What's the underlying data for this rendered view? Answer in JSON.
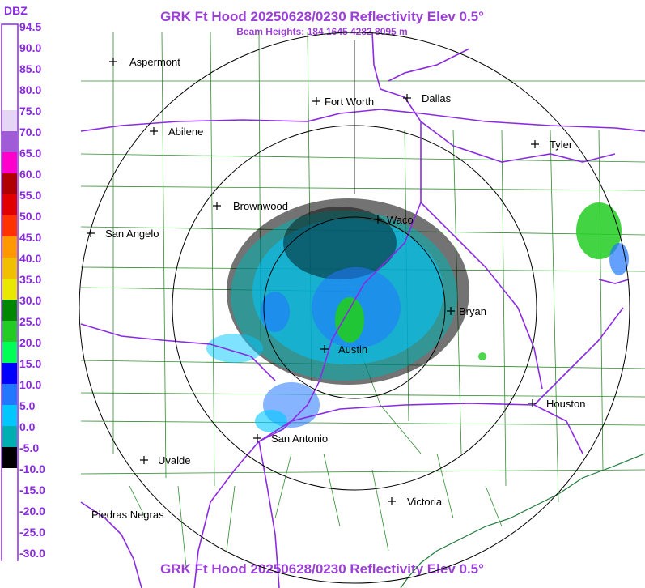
{
  "header": {
    "title": "GRK Ft Hood 20250628/0230 Reflectivity Elev 0.5°",
    "subtitle": "Beam Heights: 184 1645 4282 8095 m",
    "footer_title": "GRK Ft Hood 20250628/0230 Reflectivity Elev 0.5°"
  },
  "legend": {
    "unit": "DBZ",
    "levels": [
      {
        "label": "94.5",
        "color": "#ffffff"
      },
      {
        "label": "90.0",
        "color": "#ffffff"
      },
      {
        "label": "85.0",
        "color": "#ffffff"
      },
      {
        "label": "80.0",
        "color": "#ffffff"
      },
      {
        "label": "75.0",
        "color": "#e6d6f5"
      },
      {
        "label": "70.0",
        "color": "#a05bd6"
      },
      {
        "label": "65.0",
        "color": "#ff00cc"
      },
      {
        "label": "60.0",
        "color": "#b00000"
      },
      {
        "label": "55.0",
        "color": "#e00000"
      },
      {
        "label": "50.0",
        "color": "#ff3300"
      },
      {
        "label": "45.0",
        "color": "#ff9900"
      },
      {
        "label": "40.0",
        "color": "#f0c000"
      },
      {
        "label": "35.0",
        "color": "#e8e800"
      },
      {
        "label": "30.0",
        "color": "#008800"
      },
      {
        "label": "25.0",
        "color": "#22cc22"
      },
      {
        "label": "20.0",
        "color": "#00ff55"
      },
      {
        "label": "15.0",
        "color": "#0000ff"
      },
      {
        "label": "10.0",
        "color": "#2277ff"
      },
      {
        "label": "5.0",
        "color": "#00c8ff"
      },
      {
        "label": "0.0",
        "color": "#00b0b0"
      },
      {
        "label": "-5.0",
        "color": "#000000"
      },
      {
        "label": "-10.0",
        "color": "#ffffff"
      },
      {
        "label": "-15.0",
        "color": "#ffffff"
      },
      {
        "label": "-20.0",
        "color": "#ffffff"
      },
      {
        "label": "-25.0",
        "color": "#ffffff"
      },
      {
        "label": "-30.0",
        "color": "#ffffff"
      }
    ]
  },
  "cities": [
    {
      "name": "Aspermont"
    },
    {
      "name": "Fort Worth"
    },
    {
      "name": "Dallas"
    },
    {
      "name": "Abilene"
    },
    {
      "name": "Tyler"
    },
    {
      "name": "Brownwood"
    },
    {
      "name": "Waco"
    },
    {
      "name": "San Angelo"
    },
    {
      "name": "Bryan"
    },
    {
      "name": "Austin"
    },
    {
      "name": "Houston"
    },
    {
      "name": "San Antonio"
    },
    {
      "name": "Uvalde"
    },
    {
      "name": "Victoria"
    },
    {
      "name": "Piedras Negras"
    }
  ],
  "colors": {
    "title": "#9b3fd6",
    "legend_frame": "#8a2be2",
    "county_lines": "#2e8b2e",
    "state_lines": "#8a2be2",
    "range_rings": "#000000"
  }
}
